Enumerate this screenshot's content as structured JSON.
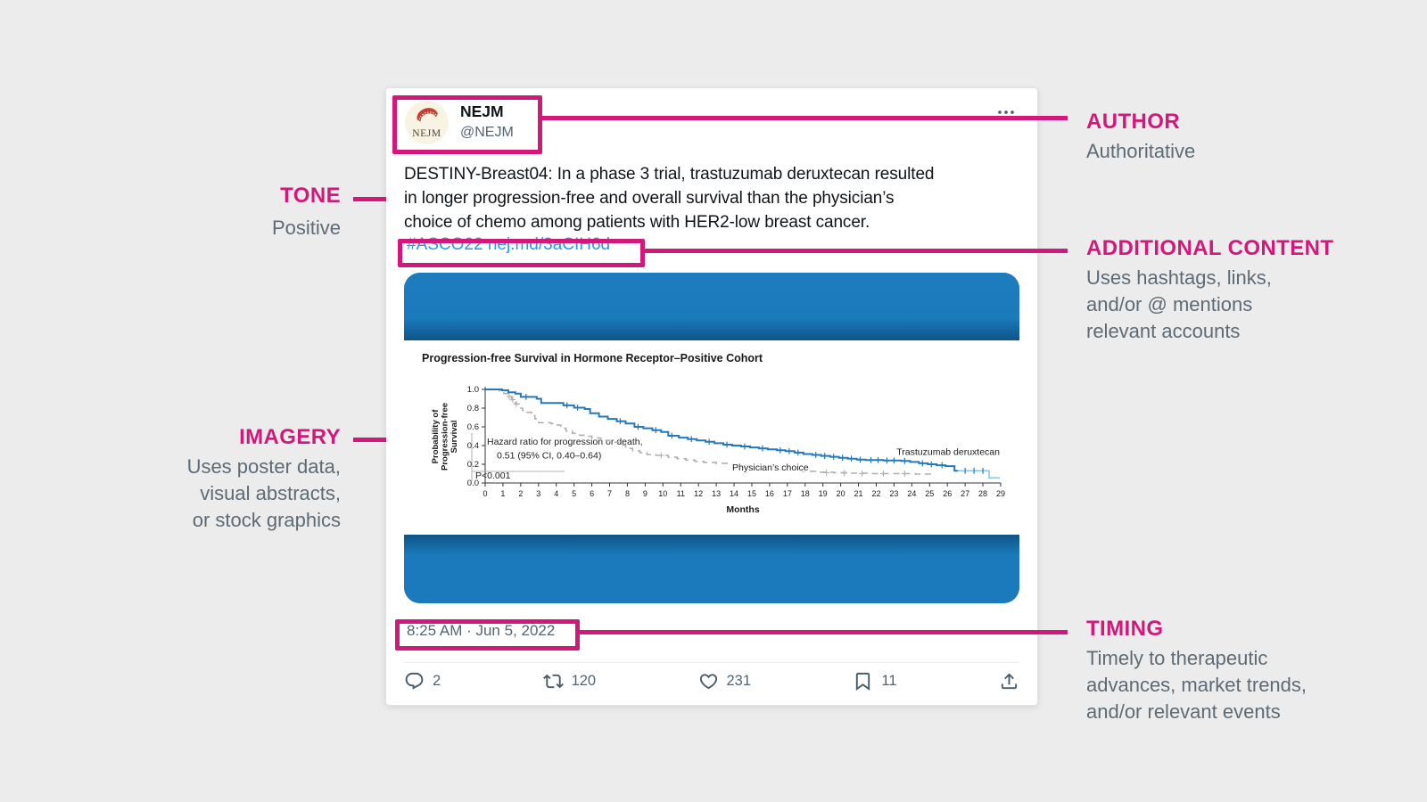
{
  "page": {
    "background": "#ececec",
    "accent_pink": "#d0197a"
  },
  "tweet": {
    "author_name": "NEJM",
    "author_handle": "@NEJM",
    "avatar_text": "NEJM",
    "more_icon": "more-dots-icon",
    "text_lines": [
      "DESTINY-Breast04: In a phase 3 trial, trastuzumab deruxtecan resulted",
      "in longer progression-free and overall survival than the physician’s",
      "choice of chemo among patients with HER2-low breast cancer."
    ],
    "link_text": "#ASCO22 nej.md/3aCIH6d",
    "timestamp": "8:25 AM · Jun 5, 2022",
    "actions": {
      "reply": {
        "icon": "reply-icon",
        "count": "2"
      },
      "retweet": {
        "icon": "retweet-icon",
        "count": "120"
      },
      "like": {
        "icon": "like-icon",
        "count": "231"
      },
      "bookmark": {
        "icon": "bookmark-icon",
        "count": "11"
      },
      "share": {
        "icon": "share-icon",
        "count": ""
      }
    }
  },
  "annotations": {
    "author": {
      "title": "AUTHOR",
      "line1": "Authoritative"
    },
    "tone": {
      "title": "TONE",
      "line1": "Positive"
    },
    "additional": {
      "title": "ADDITIONAL CONTENT",
      "line1": "Uses hashtags, links,",
      "line2": "and/or @ mentions",
      "line3": "relevant accounts"
    },
    "imagery": {
      "title": "IMAGERY",
      "line1": "Uses poster data,",
      "line2": "visual abstracts,",
      "line3": "or stock graphics"
    },
    "timing": {
      "title": "TIMING",
      "line1": "Timely to therapeutic",
      "line2": "advances, market trends,",
      "line3": "and/or relevant events"
    }
  },
  "chart_data": {
    "type": "line",
    "title": "Progression-free Survival in Hormone Receptor–Positive Cohort",
    "ylabel_lines": [
      "Probability of",
      "Progression-free",
      "Survival"
    ],
    "xlabel": "Months",
    "xlim": [
      0,
      29
    ],
    "ylim": [
      0.0,
      1.0
    ],
    "xticks": [
      "0",
      "1",
      "2",
      "3",
      "4",
      "5",
      "6",
      "7",
      "8",
      "9",
      "10",
      "11",
      "12",
      "13",
      "14",
      "15",
      "16",
      "17",
      "18",
      "19",
      "20",
      "21",
      "22",
      "23",
      "24",
      "25",
      "26",
      "27",
      "28",
      "29"
    ],
    "yticks": [
      "0.0",
      "0.2",
      "0.4",
      "0.6",
      "0.8",
      "1.0"
    ],
    "grid": false,
    "legend_position": "inline-labels",
    "annotation_lines": [
      "Hazard ratio for progression or death,",
      "0.51 (95% CI, 0.40–0.64)",
      "P<0.001"
    ],
    "series": [
      {
        "name": "Trastuzumab deruxtecan",
        "color": "#2578b9",
        "style": "solid",
        "points": [
          [
            0,
            1.0
          ],
          [
            0.95,
            0.99
          ],
          [
            1.3,
            0.97
          ],
          [
            1.7,
            0.955
          ],
          [
            2.0,
            0.92
          ],
          [
            2.9,
            0.9
          ],
          [
            3.15,
            0.855
          ],
          [
            4.4,
            0.83
          ],
          [
            5.0,
            0.805
          ],
          [
            5.6,
            0.79
          ],
          [
            5.9,
            0.745
          ],
          [
            6.4,
            0.71
          ],
          [
            6.9,
            0.685
          ],
          [
            7.4,
            0.66
          ],
          [
            7.9,
            0.635
          ],
          [
            8.4,
            0.6
          ],
          [
            8.9,
            0.585
          ],
          [
            9.4,
            0.565
          ],
          [
            9.9,
            0.545
          ],
          [
            10.3,
            0.505
          ],
          [
            10.9,
            0.485
          ],
          [
            11.4,
            0.47
          ],
          [
            11.9,
            0.455
          ],
          [
            12.4,
            0.44
          ],
          [
            12.9,
            0.425
          ],
          [
            13.4,
            0.41
          ],
          [
            13.9,
            0.4
          ],
          [
            14.4,
            0.39
          ],
          [
            14.9,
            0.38
          ],
          [
            15.4,
            0.37
          ],
          [
            15.9,
            0.36
          ],
          [
            16.4,
            0.35
          ],
          [
            16.9,
            0.34
          ],
          [
            17.4,
            0.325
          ],
          [
            17.9,
            0.31
          ],
          [
            18.4,
            0.3
          ],
          [
            18.9,
            0.29
          ],
          [
            19.4,
            0.28
          ],
          [
            19.9,
            0.27
          ],
          [
            20.4,
            0.26
          ],
          [
            20.9,
            0.25
          ],
          [
            21.4,
            0.245
          ],
          [
            22.4,
            0.24
          ],
          [
            23.4,
            0.235
          ],
          [
            23.9,
            0.225
          ],
          [
            24.4,
            0.21
          ],
          [
            24.9,
            0.2
          ],
          [
            25.4,
            0.19
          ],
          [
            25.9,
            0.18
          ],
          [
            26.4,
            0.13
          ],
          [
            26.6,
            0.13
          ]
        ],
        "censor_ticks": [
          [
            2.3,
            0.92
          ],
          [
            4.6,
            0.83
          ],
          [
            5.2,
            0.805
          ],
          [
            7.6,
            0.66
          ],
          [
            8.6,
            0.6
          ],
          [
            9.6,
            0.565
          ],
          [
            10.5,
            0.505
          ],
          [
            11.6,
            0.47
          ],
          [
            12.6,
            0.44
          ],
          [
            13.6,
            0.41
          ],
          [
            14.6,
            0.39
          ],
          [
            15.6,
            0.37
          ],
          [
            16.6,
            0.35
          ],
          [
            17.1,
            0.34
          ],
          [
            17.6,
            0.325
          ],
          [
            18.6,
            0.3
          ],
          [
            19.1,
            0.29
          ],
          [
            19.6,
            0.28
          ],
          [
            20.1,
            0.27
          ],
          [
            20.6,
            0.26
          ],
          [
            21.1,
            0.25
          ],
          [
            21.7,
            0.245
          ],
          [
            22.1,
            0.245
          ],
          [
            22.6,
            0.24
          ],
          [
            23.0,
            0.24
          ],
          [
            23.6,
            0.235
          ],
          [
            24.6,
            0.21
          ],
          [
            25.1,
            0.2
          ],
          [
            25.7,
            0.19
          ],
          [
            27.0,
            0.13
          ],
          [
            27.5,
            0.13
          ],
          [
            28.0,
            0.13
          ]
        ],
        "label_at": [
          28.95,
          0.3
        ]
      },
      {
        "name": "",
        "color": "#90c5e8",
        "style": "solid",
        "points": [
          [
            26.6,
            0.13
          ],
          [
            28.35,
            0.13
          ],
          [
            28.35,
            0.055
          ],
          [
            28.95,
            0.055
          ]
        ],
        "censor_ticks": [],
        "label_at": null
      },
      {
        "name": "Physician’s choice",
        "color": "#b0b0b0",
        "style": "dashed",
        "points": [
          [
            0,
            1.0
          ],
          [
            0.8,
            0.985
          ],
          [
            1.05,
            0.955
          ],
          [
            1.3,
            0.925
          ],
          [
            1.5,
            0.89
          ],
          [
            1.7,
            0.845
          ],
          [
            1.9,
            0.8
          ],
          [
            2.1,
            0.775
          ],
          [
            2.35,
            0.755
          ],
          [
            2.6,
            0.72
          ],
          [
            2.8,
            0.685
          ],
          [
            3.0,
            0.645
          ],
          [
            3.7,
            0.635
          ],
          [
            4.05,
            0.62
          ],
          [
            4.25,
            0.585
          ],
          [
            4.55,
            0.555
          ],
          [
            4.9,
            0.53
          ],
          [
            5.3,
            0.51
          ],
          [
            5.7,
            0.5
          ],
          [
            6.0,
            0.48
          ],
          [
            6.5,
            0.455
          ],
          [
            7.0,
            0.435
          ],
          [
            7.5,
            0.405
          ],
          [
            7.9,
            0.37
          ],
          [
            8.3,
            0.345
          ],
          [
            8.7,
            0.325
          ],
          [
            9.1,
            0.305
          ],
          [
            9.6,
            0.295
          ],
          [
            10.3,
            0.275
          ],
          [
            10.8,
            0.26
          ],
          [
            11.3,
            0.245
          ],
          [
            11.8,
            0.23
          ],
          [
            12.3,
            0.22
          ],
          [
            13.0,
            0.21
          ],
          [
            13.6,
            0.2
          ],
          [
            14.2,
            0.19
          ],
          [
            14.8,
            0.18
          ],
          [
            15.4,
            0.17
          ],
          [
            16.0,
            0.155
          ],
          [
            16.6,
            0.145
          ],
          [
            17.2,
            0.135
          ],
          [
            17.8,
            0.125
          ],
          [
            18.6,
            0.115
          ],
          [
            19.6,
            0.11
          ],
          [
            20.6,
            0.105
          ],
          [
            21.6,
            0.1
          ],
          [
            23.0,
            0.1
          ],
          [
            24.2,
            0.095
          ],
          [
            25.2,
            0.095
          ]
        ],
        "censor_plus": [
          [
            1.35,
            0.925
          ],
          [
            1.55,
            0.89
          ],
          [
            1.75,
            0.845
          ],
          [
            9.9,
            0.295
          ],
          [
            16.3,
            0.155
          ],
          [
            19.2,
            0.11
          ],
          [
            20.2,
            0.105
          ],
          [
            21.2,
            0.1
          ],
          [
            22.4,
            0.1
          ],
          [
            23.6,
            0.1
          ]
        ],
        "label_at": [
          13.9,
          0.135
        ]
      }
    ]
  }
}
